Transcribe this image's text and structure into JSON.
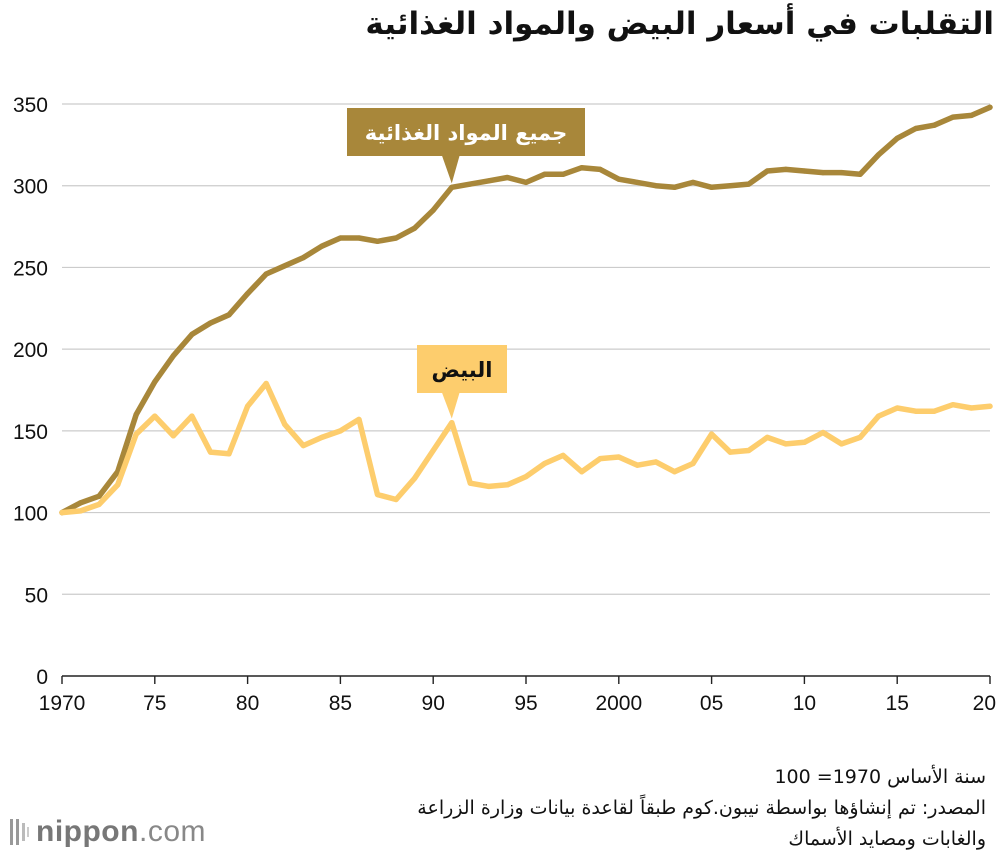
{
  "title": "التقلبات في أسعار البيض والمواد الغذائية",
  "notes": {
    "base": "سنة الأساس 1970= 100",
    "source": "المصدر: تم إنشاؤها بواسطة نيبون.كوم طبقاً  لقاعدة بيانات وزارة الزراعة",
    "source2": "والغابات ومصايد الأسماك"
  },
  "logo": {
    "part1": "nippon",
    "part2": "com"
  },
  "colors": {
    "food": "#a8873a",
    "eggs": "#fdcd6d",
    "grid": "#cccccc",
    "axis": "#222222"
  },
  "chart_data": {
    "type": "line",
    "title": "التقلبات في أسعار البيض والمواد الغذائية",
    "x": [
      1970,
      1971,
      1972,
      1973,
      1974,
      1975,
      1976,
      1977,
      1978,
      1979,
      1980,
      1981,
      1982,
      1983,
      1984,
      1985,
      1986,
      1987,
      1988,
      1989,
      1990,
      1991,
      1992,
      1993,
      1994,
      1995,
      1996,
      1997,
      1998,
      1999,
      2000,
      2001,
      2002,
      2003,
      2004,
      2005,
      2006,
      2007,
      2008,
      2009,
      2010,
      2011,
      2012,
      2013,
      2014,
      2015,
      2016,
      2017,
      2018,
      2019,
      2020
    ],
    "xlim": [
      1970,
      2020
    ],
    "ylim": [
      0,
      350
    ],
    "yticks": [
      0,
      50,
      100,
      150,
      200,
      250,
      300,
      350
    ],
    "xticks": [
      1970,
      1975,
      1980,
      1985,
      1990,
      1995,
      2000,
      2005,
      2010,
      2015,
      2020
    ],
    "xtick_labels": [
      "1970",
      "75",
      "80",
      "85",
      "90",
      "95",
      "2000",
      "05",
      "10",
      "15",
      "20"
    ],
    "grid": true,
    "series": [
      {
        "name": "جميع المواد الغذائية",
        "color": "#a8873a",
        "label_year": 1991,
        "values": [
          100,
          106,
          110,
          125,
          160,
          180,
          196,
          209,
          216,
          221,
          234,
          246,
          251,
          256,
          263,
          268,
          268,
          266,
          268,
          274,
          285,
          299,
          301,
          303,
          305,
          302,
          307,
          307,
          311,
          310,
          304,
          302,
          300,
          299,
          302,
          299,
          300,
          301,
          309,
          310,
          309,
          308,
          308,
          307,
          319,
          329,
          335,
          337,
          342,
          343,
          348
        ]
      },
      {
        "name": "البيض",
        "color": "#fdcd6d",
        "label_year": 1991,
        "values": [
          100,
          101,
          105,
          117,
          148,
          159,
          147,
          159,
          137,
          136,
          165,
          179,
          154,
          141,
          146,
          150,
          157,
          111,
          108,
          121,
          138,
          155,
          118,
          116,
          117,
          122,
          130,
          135,
          125,
          133,
          134,
          129,
          131,
          125,
          130,
          148,
          137,
          138,
          146,
          142,
          143,
          149,
          142,
          146,
          159,
          164,
          162,
          162,
          166,
          164,
          165
        ]
      }
    ]
  }
}
